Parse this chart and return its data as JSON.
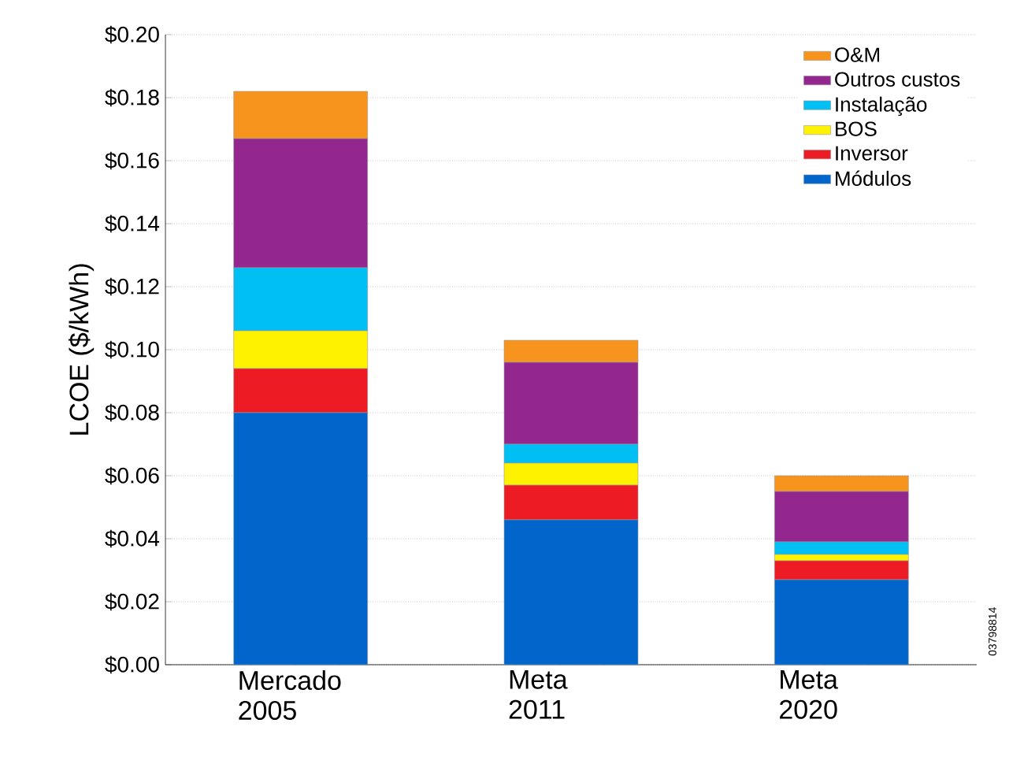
{
  "chart_data": {
    "type": "bar",
    "stacked": true,
    "ylabel": "LCOE ($/kWh)",
    "categories": [
      "Mercado 2005",
      "Meta 2011",
      "Meta 2020"
    ],
    "series": [
      {
        "name": "Módulos",
        "color": "#0066cc",
        "values": [
          0.08,
          0.046,
          0.027
        ]
      },
      {
        "name": "Inversor",
        "color": "#ed1c24",
        "values": [
          0.014,
          0.011,
          0.006
        ]
      },
      {
        "name": "BOS",
        "color": "#fff200",
        "values": [
          0.012,
          0.007,
          0.002
        ]
      },
      {
        "name": "Instalação",
        "color": "#00bff3",
        "values": [
          0.02,
          0.006,
          0.004
        ]
      },
      {
        "name": "Outros custos",
        "color": "#93278f",
        "values": [
          0.041,
          0.026,
          0.016
        ]
      },
      {
        "name": "O&M",
        "color": "#f7941d",
        "values": [
          0.015,
          0.007,
          0.005
        ]
      }
    ],
    "ylim": [
      0,
      0.2
    ],
    "yticks": [
      {
        "value": 0,
        "label": "$0.00"
      },
      {
        "value": 0.02,
        "label": "$0.02"
      },
      {
        "value": 0.04,
        "label": "$0.04"
      },
      {
        "value": 0.06,
        "label": "$0.06"
      },
      {
        "value": 0.08,
        "label": "$0.08"
      },
      {
        "value": 0.1,
        "label": "$0.10"
      },
      {
        "value": 0.12,
        "label": "$0.12"
      },
      {
        "value": 0.14,
        "label": "$0.14"
      },
      {
        "value": 0.16,
        "label": "$0.16"
      },
      {
        "value": 0.18,
        "label": "$0.18"
      },
      {
        "value": 0.2,
        "label": "$0.20"
      }
    ],
    "grid": "y",
    "legend": "top right",
    "annotations": [
      "03798814"
    ]
  }
}
